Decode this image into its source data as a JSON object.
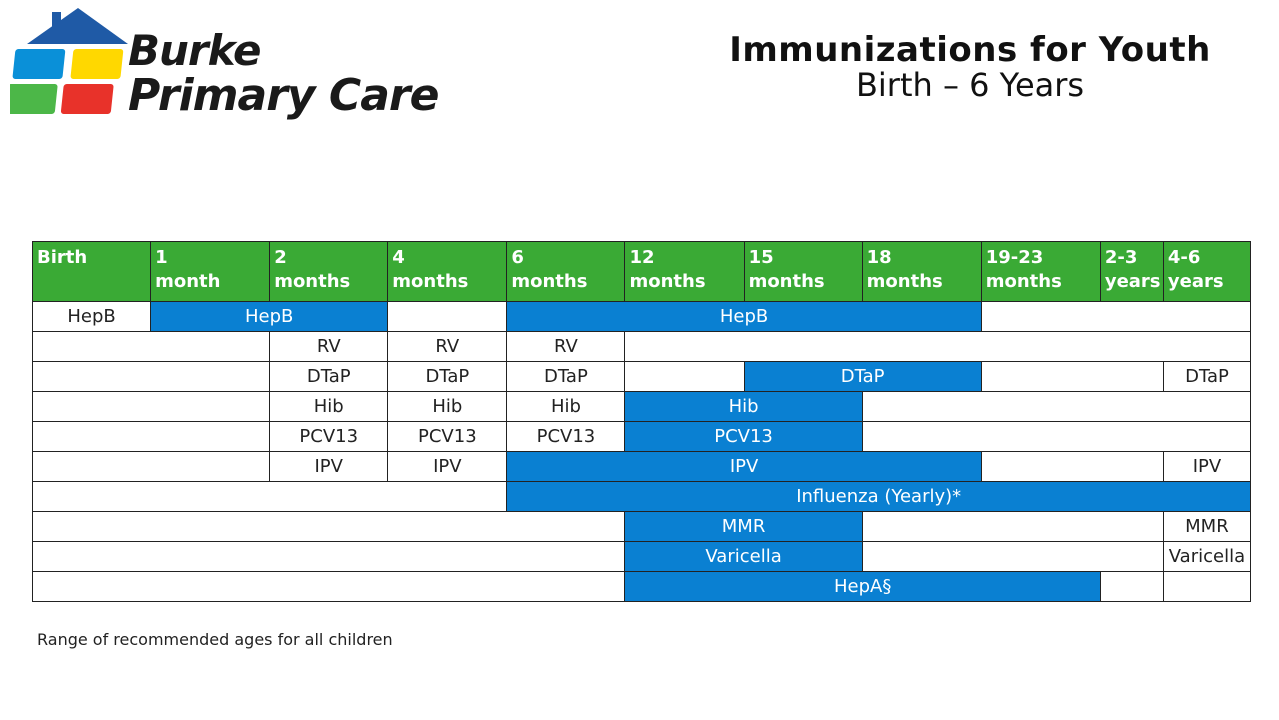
{
  "brand": {
    "line1": "Burke",
    "line2": "Primary Care",
    "colors": {
      "roof": "#1f5aa6",
      "blue": "#0a90d8",
      "yellow": "#ffd800",
      "green": "#4cb748",
      "red": "#e8322a"
    }
  },
  "title": {
    "main": "Immunizations for Youth",
    "sub": "Birth – 6 Years"
  },
  "colors": {
    "header": "#3aaa35",
    "range": "#0a80d2"
  },
  "columns": [
    {
      "l1": "Birth",
      "l2": ""
    },
    {
      "l1": "1",
      "l2": "month"
    },
    {
      "l1": "2",
      "l2": "months"
    },
    {
      "l1": "4",
      "l2": "months"
    },
    {
      "l1": "6",
      "l2": "months"
    },
    {
      "l1": "12",
      "l2": "months"
    },
    {
      "l1": "15",
      "l2": "months"
    },
    {
      "l1": "18",
      "l2": "months"
    },
    {
      "l1": "19-23",
      "l2": "months"
    },
    {
      "l1": "2-3",
      "l2": "years"
    },
    {
      "l1": "4-6",
      "l2": "years"
    }
  ],
  "rows": [
    [
      {
        "span": 1,
        "text": "HepB"
      },
      {
        "span": 2,
        "text": "HepB",
        "range": true
      },
      {
        "span": 1,
        "text": ""
      },
      {
        "span": 4,
        "text": "HepB",
        "range": true
      },
      {
        "span": 3,
        "text": ""
      }
    ],
    [
      {
        "span": 2,
        "text": ""
      },
      {
        "span": 1,
        "text": "RV"
      },
      {
        "span": 1,
        "text": "RV"
      },
      {
        "span": 1,
        "text": "RV"
      },
      {
        "span": 6,
        "text": ""
      }
    ],
    [
      {
        "span": 2,
        "text": ""
      },
      {
        "span": 1,
        "text": "DTaP"
      },
      {
        "span": 1,
        "text": "DTaP"
      },
      {
        "span": 1,
        "text": "DTaP"
      },
      {
        "span": 1,
        "text": ""
      },
      {
        "span": 2,
        "text": "DTaP",
        "range": true
      },
      {
        "span": 2,
        "text": ""
      },
      {
        "span": 1,
        "text": "DTaP"
      }
    ],
    [
      {
        "span": 2,
        "text": ""
      },
      {
        "span": 1,
        "text": "Hib"
      },
      {
        "span": 1,
        "text": "Hib"
      },
      {
        "span": 1,
        "text": "Hib"
      },
      {
        "span": 2,
        "text": "Hib",
        "range": true
      },
      {
        "span": 4,
        "text": ""
      }
    ],
    [
      {
        "span": 2,
        "text": ""
      },
      {
        "span": 1,
        "text": "PCV13"
      },
      {
        "span": 1,
        "text": "PCV13"
      },
      {
        "span": 1,
        "text": "PCV13"
      },
      {
        "span": 2,
        "text": "PCV13",
        "range": true
      },
      {
        "span": 4,
        "text": ""
      }
    ],
    [
      {
        "span": 2,
        "text": ""
      },
      {
        "span": 1,
        "text": "IPV"
      },
      {
        "span": 1,
        "text": "IPV"
      },
      {
        "span": 4,
        "text": "IPV",
        "range": true
      },
      {
        "span": 2,
        "text": ""
      },
      {
        "span": 1,
        "text": "IPV"
      }
    ],
    [
      {
        "span": 4,
        "text": ""
      },
      {
        "span": 7,
        "text": "Influenza (Yearly)*",
        "range": true
      }
    ],
    [
      {
        "span": 5,
        "text": ""
      },
      {
        "span": 2,
        "text": "MMR",
        "range": true
      },
      {
        "span": 3,
        "text": ""
      },
      {
        "span": 1,
        "text": "MMR"
      }
    ],
    [
      {
        "span": 5,
        "text": ""
      },
      {
        "span": 2,
        "text": "Varicella",
        "range": true
      },
      {
        "span": 3,
        "text": ""
      },
      {
        "span": 1,
        "text": "Varicella"
      }
    ],
    [
      {
        "span": 5,
        "text": ""
      },
      {
        "span": 4,
        "text": "HepA§",
        "range": true
      },
      {
        "span": 1,
        "text": ""
      },
      {
        "span": 1,
        "text": ""
      }
    ]
  ],
  "legend_note": "Range of recommended ages for all children"
}
